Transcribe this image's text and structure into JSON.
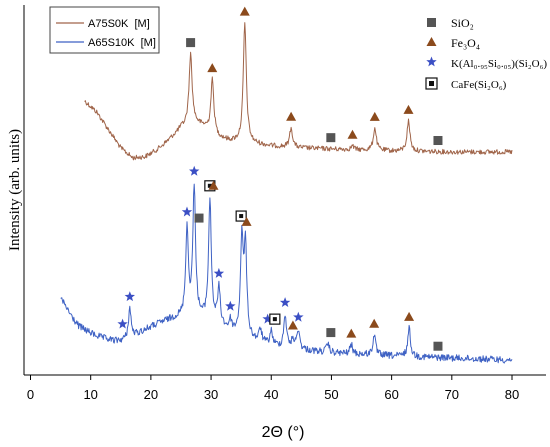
{
  "chart_data": {
    "type": "line",
    "xlabel": "2Θ (°)",
    "ylabel": "Intensity (arb. units)",
    "xlim": [
      0,
      85
    ],
    "xticks": [
      0,
      10,
      20,
      30,
      40,
      50,
      60,
      70,
      80
    ],
    "grid": false,
    "legend_position": "top-left",
    "series": [
      {
        "name": "A75S0K  [M]",
        "color": "#a0654a",
        "baseline": 152,
        "background": [
          [
            9,
            101
          ],
          [
            11,
            112
          ],
          [
            13,
            130
          ],
          [
            15,
            148
          ],
          [
            17,
            158
          ],
          [
            19,
            157
          ],
          [
            21,
            150
          ],
          [
            23,
            140
          ],
          [
            25,
            128
          ],
          [
            27,
            122
          ],
          [
            29,
            127
          ],
          [
            31,
            137
          ],
          [
            33,
            141
          ],
          [
            36,
            143
          ],
          [
            40,
            146
          ],
          [
            45,
            148
          ],
          [
            50,
            149
          ],
          [
            55,
            150
          ],
          [
            60,
            151
          ],
          [
            70,
            152
          ],
          [
            80,
            152
          ]
        ],
        "peaks": [
          [
            26.6,
            54
          ],
          [
            30.2,
            80
          ],
          [
            35.6,
            23
          ],
          [
            43.3,
            128
          ],
          [
            53.5,
            146
          ],
          [
            57.2,
            128
          ],
          [
            62.8,
            121
          ]
        ],
        "peak_width": 0.3,
        "noise": 2.4,
        "x_range": [
          9,
          80
        ]
      },
      {
        "name": "A65S10K  [M]",
        "color": "#3f62c4",
        "baseline": 360,
        "background": [
          [
            5,
            298
          ],
          [
            6,
            308
          ],
          [
            7,
            318
          ],
          [
            8,
            326
          ],
          [
            10,
            333
          ],
          [
            12,
            338
          ],
          [
            14,
            341
          ],
          [
            16,
            340
          ],
          [
            18,
            333
          ],
          [
            20,
            327
          ],
          [
            22,
            322
          ],
          [
            24,
            318
          ],
          [
            26,
            317
          ],
          [
            28,
            318
          ],
          [
            30,
            322
          ],
          [
            32,
            328
          ],
          [
            35,
            337
          ],
          [
            40,
            346
          ],
          [
            45,
            350
          ],
          [
            50,
            353
          ],
          [
            60,
            356
          ],
          [
            70,
            358
          ],
          [
            80,
            360
          ]
        ],
        "peaks": [
          [
            16.5,
            308
          ],
          [
            26.0,
            230
          ],
          [
            27.2,
            188
          ],
          [
            29.8,
            200
          ],
          [
            31.3,
            290
          ],
          [
            33.2,
            322
          ],
          [
            35.1,
            243
          ],
          [
            35.7,
            250
          ],
          [
            38.2,
            330
          ],
          [
            40.0,
            332
          ],
          [
            42.3,
            315
          ],
          [
            43.6,
            340
          ],
          [
            44.5,
            330
          ],
          [
            49.4,
            344
          ],
          [
            53.3,
            345
          ],
          [
            57.1,
            335
          ],
          [
            62.9,
            328
          ]
        ],
        "peak_width": 0.27,
        "noise": 3.4,
        "x_range": [
          5,
          80
        ]
      }
    ],
    "phase_legend": [
      {
        "label": "SiO₂",
        "marker": "square",
        "color": "#555555"
      },
      {
        "label": "Fe₃O₄",
        "marker": "triangle",
        "color": "#8b4a1c"
      },
      {
        "label": "K(Al₀.₉₅Si₀.₀₅)(Si₂O₆)",
        "marker": "star",
        "color": "#3b4fc4"
      },
      {
        "label": "CaFe(Si₂O₆)",
        "marker": "boxed-square",
        "color": "#111111"
      }
    ],
    "markers": [
      {
        "series": 0,
        "marker": "square",
        "x": 26.6
      },
      {
        "series": 0,
        "marker": "triangle",
        "x": 30.2
      },
      {
        "series": 0,
        "marker": "triangle",
        "x": 35.6
      },
      {
        "series": 0,
        "marker": "triangle",
        "x": 43.3
      },
      {
        "series": 0,
        "marker": "square",
        "x": 49.9
      },
      {
        "series": 0,
        "marker": "triangle",
        "x": 53.5
      },
      {
        "series": 0,
        "marker": "triangle",
        "x": 57.2
      },
      {
        "series": 0,
        "marker": "triangle",
        "x": 62.8
      },
      {
        "series": 0,
        "marker": "square",
        "x": 67.7
      },
      {
        "series": 1,
        "marker": "star",
        "x": 15.3
      },
      {
        "series": 1,
        "marker": "star",
        "x": 16.5
      },
      {
        "series": 1,
        "marker": "star",
        "x": 26.0
      },
      {
        "series": 1,
        "marker": "star",
        "x": 27.2
      },
      {
        "series": 1,
        "marker": "square",
        "x": 28.0
      },
      {
        "series": 1,
        "marker": "boxed-square",
        "x": 29.8
      },
      {
        "series": 1,
        "marker": "triangle",
        "x": 30.4
      },
      {
        "series": 1,
        "marker": "star",
        "x": 31.3
      },
      {
        "series": 1,
        "marker": "star",
        "x": 33.2
      },
      {
        "series": 1,
        "marker": "boxed-square",
        "x": 35.0
      },
      {
        "series": 1,
        "marker": "triangle",
        "x": 35.9
      },
      {
        "series": 1,
        "marker": "star",
        "x": 39.4
      },
      {
        "series": 1,
        "marker": "boxed-square",
        "x": 40.6
      },
      {
        "series": 1,
        "marker": "star",
        "x": 42.3
      },
      {
        "series": 1,
        "marker": "triangle",
        "x": 43.6
      },
      {
        "series": 1,
        "marker": "star",
        "x": 44.5
      },
      {
        "series": 1,
        "marker": "square",
        "x": 49.9
      },
      {
        "series": 1,
        "marker": "triangle",
        "x": 53.3
      },
      {
        "series": 1,
        "marker": "triangle",
        "x": 57.1
      },
      {
        "series": 1,
        "marker": "triangle",
        "x": 62.9
      },
      {
        "series": 1,
        "marker": "square",
        "x": 67.7
      }
    ]
  }
}
